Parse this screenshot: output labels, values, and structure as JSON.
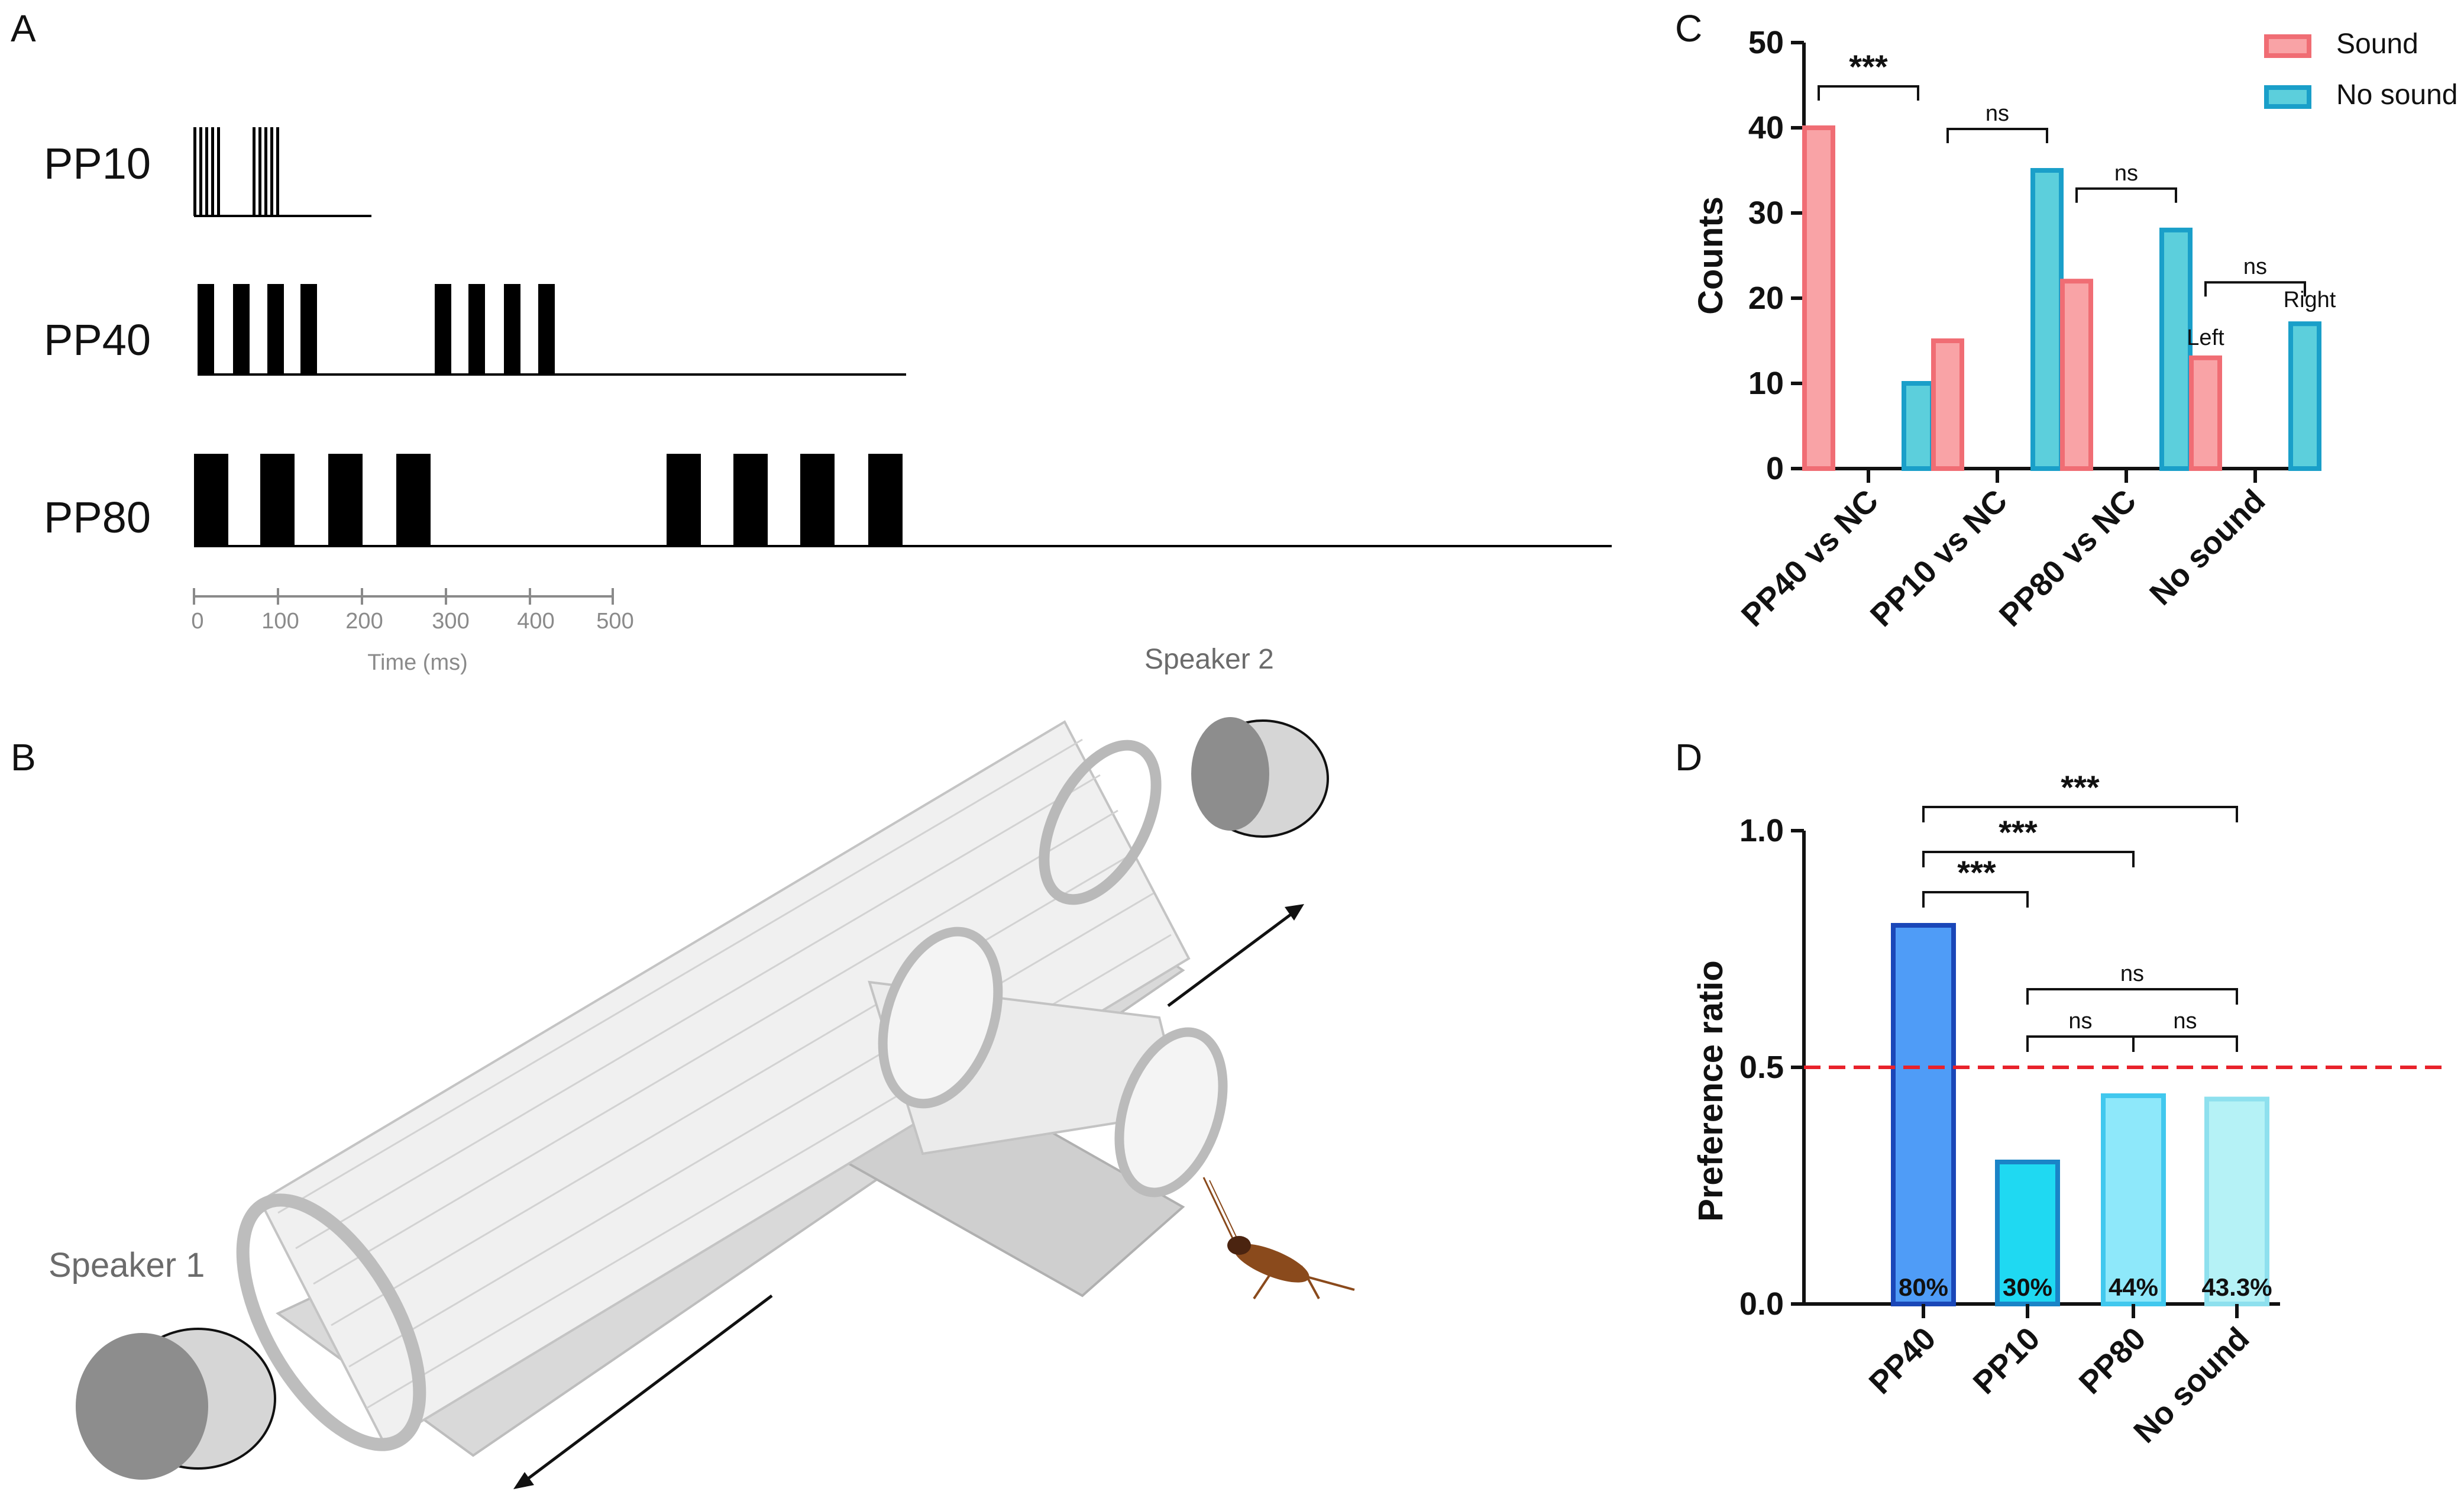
{
  "panels": {
    "a": "A",
    "b": "B",
    "c": "C",
    "d": "D"
  },
  "panel_a": {
    "patterns": [
      {
        "label": "PP10"
      },
      {
        "label": "PP40"
      },
      {
        "label": "PP80"
      }
    ],
    "axis": {
      "ticks": [
        "0",
        "100",
        "200",
        "300",
        "400",
        "500"
      ],
      "label": "Time (ms)"
    }
  },
  "panel_b": {
    "speaker1": "Speaker 1",
    "speaker2": "Speaker 2",
    "colors": {
      "tube": "#c9c9c9",
      "speaker_dark": "#8d8d8d",
      "speaker_light": "#d6d6d6",
      "cricket": "#8a4a1c"
    }
  },
  "chart_data": [
    {
      "id": "C",
      "type": "bar",
      "title": "",
      "xlabel": "",
      "ylabel": "Counts",
      "ylim": [
        0,
        50
      ],
      "yticks": [
        "0",
        "10",
        "20",
        "30",
        "40",
        "50"
      ],
      "categories": [
        "PP40 vs NC",
        "PP10 vs NC",
        "PP80 vs NC",
        "No sound"
      ],
      "series": [
        {
          "name": "Sound",
          "values": [
            40,
            15,
            22,
            13
          ],
          "fill": "#f9a3a6",
          "stroke": "#f06d74"
        },
        {
          "name": "No sound",
          "values": [
            10,
            35,
            28,
            17
          ],
          "fill": "#5ccfdc",
          "stroke": "#1a9fc9"
        }
      ],
      "significance": [
        "***",
        "ns",
        "ns",
        "ns"
      ],
      "bar_annotations": {
        "left": "Left",
        "right": "Right"
      },
      "legend": "top-right"
    },
    {
      "id": "D",
      "type": "bar",
      "title": "",
      "xlabel": "",
      "ylabel": "Preference ratio",
      "ylim": [
        0,
        1.0
      ],
      "yticks": [
        "0.0",
        "0.5",
        "1.0"
      ],
      "reference_line": 0.5,
      "reference_color": "#e8222b",
      "categories": [
        "PP40",
        "PP10",
        "PP80",
        "No sound"
      ],
      "values": [
        0.8,
        0.3,
        0.44,
        0.433
      ],
      "labels": [
        "80%",
        "30%",
        "44%",
        "43.3%"
      ],
      "fills": [
        "#4f9cf7",
        "#1fd9f2",
        "#8ee8fa",
        "#b5f2f6"
      ],
      "strokes": [
        "#1a47b8",
        "#1a84c7",
        "#41c8ee",
        "#8ee0ee"
      ],
      "comparisons": [
        {
          "from": "PP40",
          "to": "PP10",
          "label": "***"
        },
        {
          "from": "PP40",
          "to": "PP80",
          "label": "***"
        },
        {
          "from": "PP40",
          "to": "No sound",
          "label": "***"
        },
        {
          "from": "PP10",
          "to": "No sound",
          "label": "ns"
        },
        {
          "from": "PP10",
          "to": "PP80",
          "label": "ns"
        },
        {
          "from": "PP80",
          "to": "No sound",
          "label": "ns"
        }
      ]
    }
  ]
}
